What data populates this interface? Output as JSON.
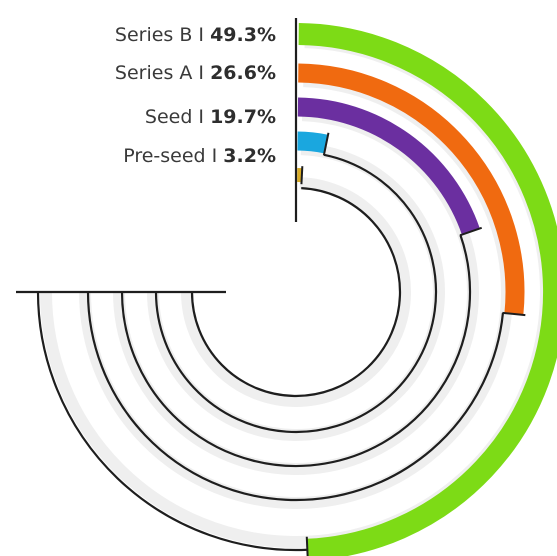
{
  "chart_data": {
    "type": "radial-bar",
    "separator": "I",
    "categories": [
      "Series B",
      "Series A",
      "Seed",
      "Pre-seed"
    ],
    "series": [
      {
        "name": "Series B",
        "value": 49.3,
        "label": "49.3%",
        "color": "#7ddb16"
      },
      {
        "name": "Series A",
        "value": 26.6,
        "label": "26.6%",
        "color": "#f06a10"
      },
      {
        "name": "Seed",
        "value": 19.7,
        "label": "19.7%",
        "color": "#6b2fa0"
      },
      {
        "name": "Pre-seed",
        "value": 3.2,
        "label": "3.2%",
        "color": "#1aa7df"
      },
      {
        "name": "",
        "value": 0.8,
        "label": "",
        "color": "#d9ac26"
      }
    ],
    "max_value": 50,
    "unit": "%",
    "grid": false,
    "legend": "none",
    "label_position": "left-of-baseline"
  }
}
